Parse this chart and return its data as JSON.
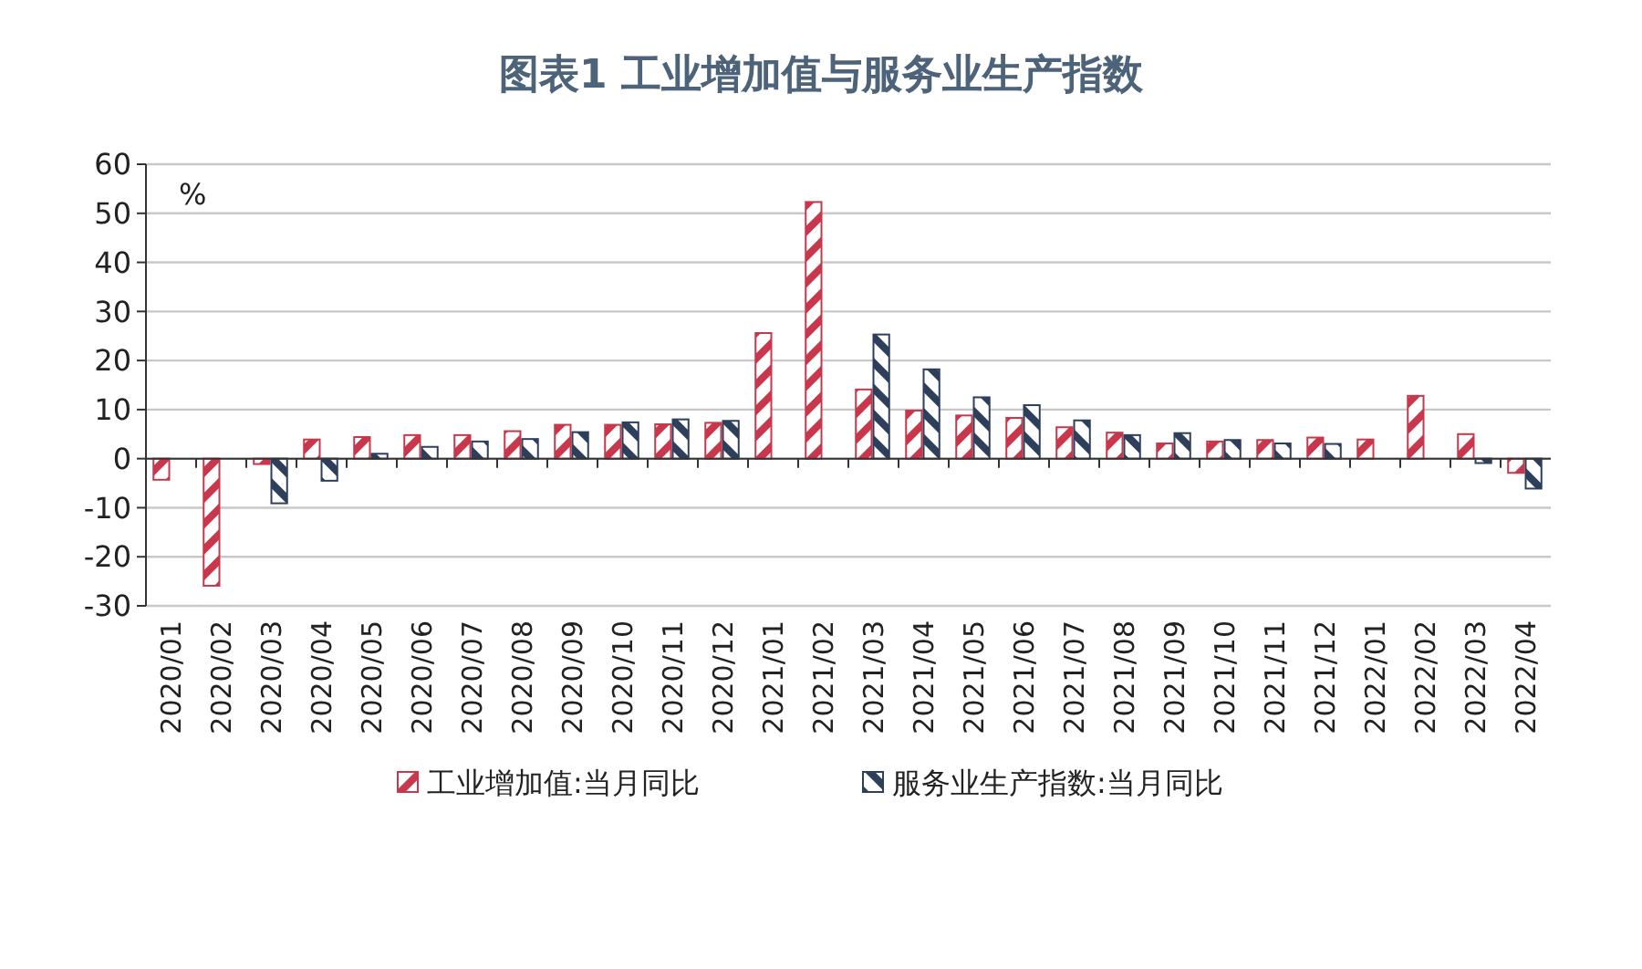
{
  "chart_data": {
    "type": "bar",
    "title": "图表1  工业增加值与服务业生产指数",
    "annotations": [
      "%"
    ],
    "categories": [
      "2020/01",
      "2020/02",
      "2020/03",
      "2020/04",
      "2020/05",
      "2020/06",
      "2020/07",
      "2020/08",
      "2020/09",
      "2020/10",
      "2020/11",
      "2020/12",
      "2021/01",
      "2021/02",
      "2021/03",
      "2021/04",
      "2021/05",
      "2021/06",
      "2021/07",
      "2021/08",
      "2021/09",
      "2021/10",
      "2021/11",
      "2021/12",
      "2022/01",
      "2022/02",
      "2022/03",
      "2022/04"
    ],
    "series": [
      {
        "name": "工业增加值:当月同比",
        "color": "#c8374b",
        "values": [
          -4.3,
          -25.9,
          -1.1,
          3.9,
          4.4,
          4.8,
          4.8,
          5.6,
          6.9,
          6.9,
          7.0,
          7.3,
          25.6,
          52.3,
          14.1,
          9.8,
          8.8,
          8.3,
          6.4,
          5.3,
          3.1,
          3.5,
          3.8,
          4.3,
          3.9,
          12.8,
          5.0,
          -2.9
        ]
      },
      {
        "name": "服务业生产指数:当月同比",
        "color": "#2e3f5c",
        "values": [
          null,
          null,
          -9.1,
          -4.5,
          1.0,
          2.4,
          3.5,
          4.0,
          5.4,
          7.4,
          8.0,
          7.7,
          null,
          null,
          25.3,
          18.2,
          12.5,
          10.9,
          7.8,
          4.8,
          5.2,
          3.8,
          3.1,
          3.0,
          null,
          null,
          -0.9,
          -6.1
        ]
      }
    ],
    "ylim": [
      -30,
      60
    ],
    "yticks": [
      -30,
      -20,
      -10,
      0,
      10,
      20,
      30,
      40,
      50,
      60
    ],
    "grid": "y",
    "legend": "bottom"
  }
}
